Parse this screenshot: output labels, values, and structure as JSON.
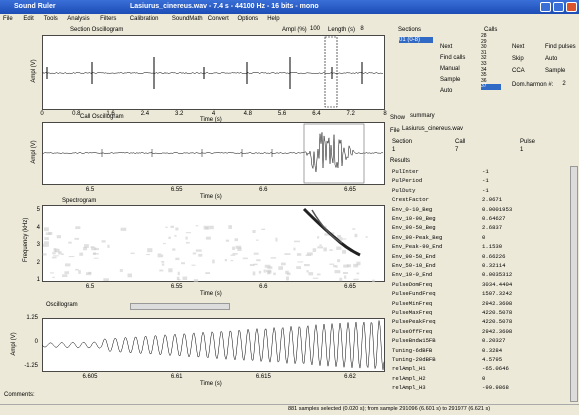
{
  "window": {
    "title": "Sound Ruler",
    "file_info": "Lasiurus_cinereus.wav - 7.4 s - 44100 Hz - 16 bits - mono"
  },
  "menu": [
    "File",
    "Edit",
    "Tools",
    "Analysis",
    "Filters",
    "Calibration",
    "SoundMath",
    "Convert",
    "Options",
    "Help"
  ],
  "section_oscillogram": {
    "title": "Section Oscillogram",
    "ampl_label": "Ampl (%)",
    "ampl_value": "100",
    "length_label": "Length (s)",
    "length_value": "8",
    "y_label": "Ampl (V)",
    "x_label": "Time (s)",
    "xticks": [
      "0",
      "0.8",
      "1.6",
      "2.4",
      "3.2",
      "4",
      "4.8",
      "5.6",
      "6.4",
      "7.2",
      "8"
    ]
  },
  "sections": {
    "title": "Sections",
    "items": [
      "01 (0-8)"
    ],
    "buttons": [
      "Next",
      "Find calls",
      "Manual",
      "Sample",
      "Auto"
    ]
  },
  "calls": {
    "title": "Calls",
    "items": [
      "28",
      "29",
      "30",
      "31",
      "32",
      "33",
      "34",
      "35",
      "36",
      "37"
    ],
    "buttons": [
      "Next",
      "Find pulses",
      "Skip",
      "Auto",
      "CCA",
      "Sample"
    ],
    "dom_harmon_label": "Dom.harmon #:",
    "dom_harmon_value": "2"
  },
  "call_oscillogram": {
    "title": "Call Oscillogram",
    "y_label": "Ampl (V)",
    "x_label": "Time (s)",
    "xticks": [
      "6.5",
      "6.55",
      "6.6",
      "6.65"
    ]
  },
  "spectrogram": {
    "title": "Spectrogram",
    "y_label": "Frequency (kHz)",
    "yticks": [
      "5",
      "4",
      "3",
      "2",
      "1"
    ],
    "x_label": "Time (s)",
    "xticks": [
      "6.5",
      "6.55",
      "6.6",
      "6.65"
    ]
  },
  "zoom": {
    "view": "Oscillogram",
    "y_label": "Ampl (V)",
    "yticks": [
      "1.25",
      "0",
      "-1.25"
    ],
    "x_label": "Time (s)",
    "xticks": [
      "6.605",
      "6.61",
      "6.615",
      "6.62"
    ]
  },
  "side": {
    "show_label": "Show",
    "show_value": "summary",
    "file_label": "File",
    "file_value": "Lasiurus_cinereus.wav",
    "section_label": "Section",
    "section_value": "1",
    "call_label": "Call",
    "call_value": "7",
    "pulse_label": "Pulse",
    "pulse_value": "1",
    "results_label": "Results",
    "results": [
      [
        "PulInter",
        "-1"
      ],
      [
        "PulPeriod",
        "-1"
      ],
      [
        "PulDuty",
        "-1"
      ],
      [
        "CrestFactor",
        "2.0671"
      ],
      [
        "Env_0-10_Beg",
        "0.0001953"
      ],
      [
        "Env_10-90_Beg",
        "0.64627"
      ],
      [
        "Env_90-50_Beg",
        "2.6837"
      ],
      [
        "Env_90-Peak_Beg",
        "0"
      ],
      [
        "Env_Peak-90_End",
        "1.1530"
      ],
      [
        "Env_90-50_End",
        "0.66226"
      ],
      [
        "Env_50-10_End",
        "0.32114"
      ],
      [
        "Env_10-0_End",
        "0.0035312"
      ],
      [
        "PulseDomFreq",
        "3034.4404"
      ],
      [
        "PulseFundFreq",
        "1507.3242"
      ],
      [
        "PulseMinFreq",
        "2942.3608"
      ],
      [
        "PulseMaxFreq",
        "4220.5078"
      ],
      [
        "PulsePeakFreq",
        "4220.5078"
      ],
      [
        "PulseOffFreq",
        "2942.3608"
      ],
      [
        "PulseBndw15FB",
        "0.20327"
      ],
      [
        "Tuning-6dBFB",
        "0.3284"
      ],
      [
        "Tuning-20dBFB",
        "4.5795"
      ],
      [
        "relAmpl_H1",
        "-65.0646"
      ],
      [
        "relAmpl_H2",
        "0"
      ],
      [
        "relAmpl_H3",
        "-99.9868"
      ]
    ]
  },
  "comments_label": "Comments:",
  "status": "881 samples selected (0.020 s); from sample 291096 (6.601 s) to 291977 (6.621 s)"
}
